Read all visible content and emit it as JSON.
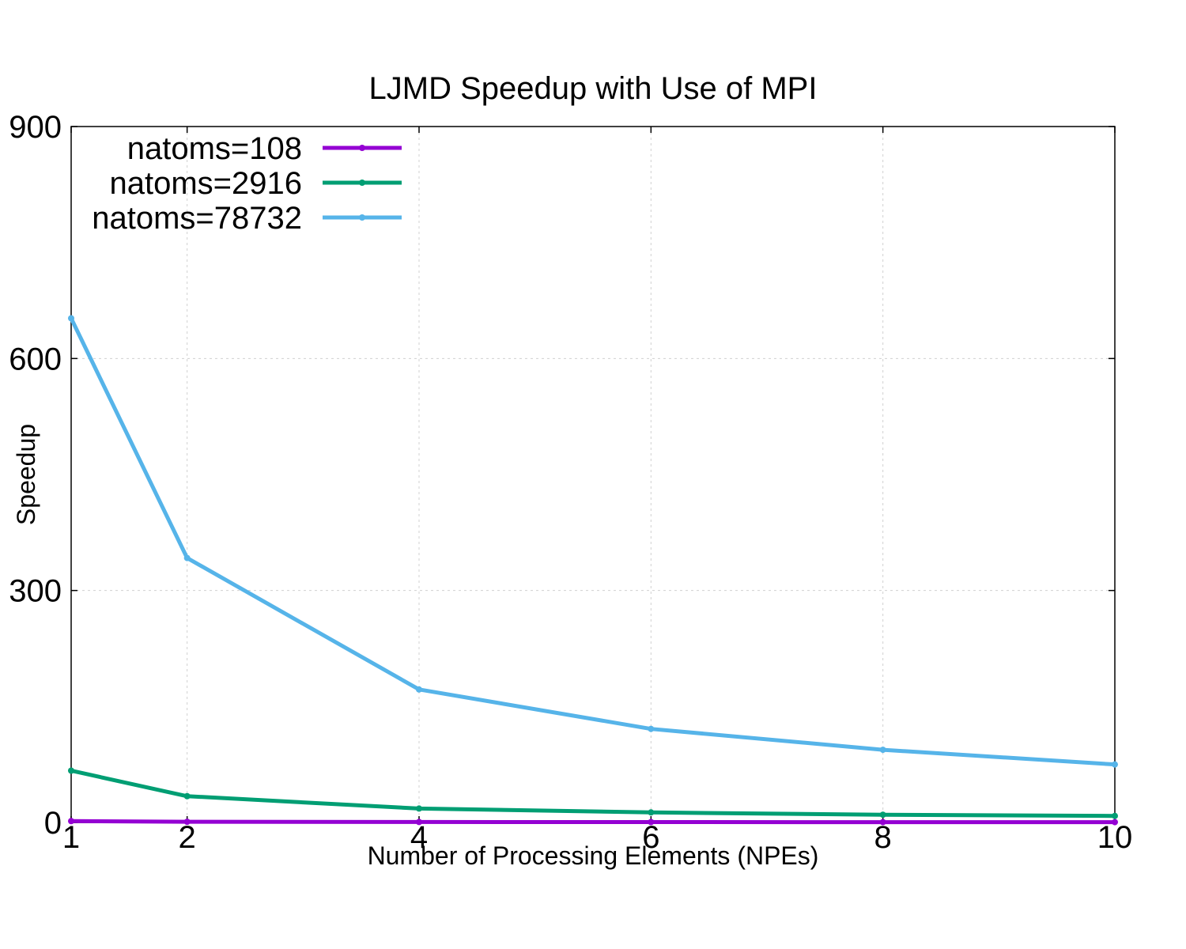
{
  "chart_data": {
    "type": "line",
    "title": "LJMD Speedup with Use of MPI",
    "xlabel": "Number of Processing Elements (NPEs)",
    "ylabel": "Speedup",
    "x": [
      1,
      2,
      4,
      6,
      8,
      10
    ],
    "xticks": [
      "1",
      "2",
      "4",
      "6",
      "8",
      "10"
    ],
    "yticks": [
      "0",
      "300",
      "600",
      "900"
    ],
    "xlim": [
      1,
      10
    ],
    "ylim": [
      0,
      900
    ],
    "grid": true,
    "legend_position": "top-left",
    "series": [
      {
        "name": "natoms=108",
        "color": "#9400d3",
        "values": [
          1.8,
          0.9,
          0.6,
          0.5,
          0.4,
          0.4
        ]
      },
      {
        "name": "natoms=2916",
        "color": "#009e73",
        "values": [
          67,
          34,
          18,
          13,
          10,
          8.5
        ]
      },
      {
        "name": "natoms=78732",
        "color": "#56b4e9",
        "values": [
          652,
          342,
          172,
          121,
          94,
          75
        ]
      }
    ]
  }
}
